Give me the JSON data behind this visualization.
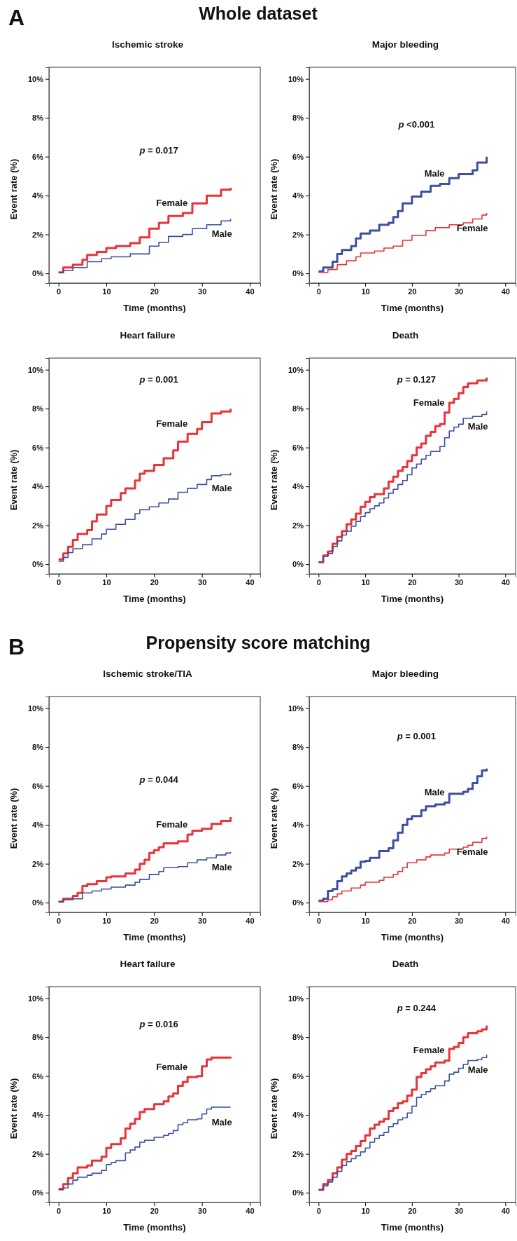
{
  "chart_data": [
    {
      "type": "step",
      "title": "Ischemic stroke",
      "xlabel": "Time (months)",
      "ylabel": "Event rate (%)",
      "annotations": [
        "A",
        "Whole dataset",
        "p = 0.017"
      ],
      "legend": false,
      "xlim": [
        -2,
        42.2
      ],
      "ylim": [
        -0.5,
        10.6
      ],
      "xticks": [
        0,
        10,
        20,
        30,
        40
      ],
      "yticks": [
        {
          "value": 0,
          "label": "0%"
        },
        {
          "value": 2,
          "label": "2%"
        },
        {
          "value": 4,
          "label": "4%"
        },
        {
          "value": 6,
          "label": "6%"
        },
        {
          "value": 8,
          "label": "8%"
        },
        {
          "value": 10,
          "label": "10%"
        }
      ],
      "series": [
        {
          "name": "Female",
          "color": "#e8333a",
          "x": [
            0,
            1,
            3,
            5,
            6,
            8,
            10,
            12,
            15,
            17,
            19,
            21,
            23,
            26,
            28,
            31,
            34,
            36
          ],
          "values": [
            0.05,
            0.3,
            0.45,
            0.7,
            0.95,
            1.1,
            1.3,
            1.4,
            1.55,
            1.85,
            2.3,
            2.6,
            2.95,
            3.1,
            3.6,
            4.0,
            4.3,
            4.4
          ]
        },
        {
          "name": "Male",
          "color": "#3c4fa0",
          "x": [
            0,
            1,
            3,
            6,
            9,
            11,
            15,
            19,
            21,
            23,
            26,
            28,
            31,
            34,
            36
          ],
          "values": [
            0.05,
            0.15,
            0.3,
            0.6,
            0.75,
            0.85,
            1.0,
            1.4,
            1.6,
            1.9,
            2.0,
            2.3,
            2.5,
            2.7,
            2.8
          ]
        }
      ]
    },
    {
      "type": "step",
      "title": "Major bleeding",
      "xlabel": "Time (months)",
      "ylabel": "Event rate (%)",
      "annotations": [
        "p <0.001"
      ],
      "legend": false,
      "xlim": [
        -2,
        42.2
      ],
      "ylim": [
        -0.5,
        10.6
      ],
      "xticks": [
        0,
        10,
        20,
        30,
        40
      ],
      "yticks": [
        {
          "value": 0,
          "label": "0%"
        },
        {
          "value": 2,
          "label": "2%"
        },
        {
          "value": 4,
          "label": "4%"
        },
        {
          "value": 6,
          "label": "6%"
        },
        {
          "value": 8,
          "label": "8%"
        },
        {
          "value": 10,
          "label": "10%"
        }
      ],
      "series": [
        {
          "name": "Male",
          "color": "#3c4fa0",
          "x": [
            0,
            1,
            3,
            4,
            5,
            7,
            8,
            9,
            11,
            13,
            15,
            16,
            17,
            18,
            20,
            22,
            24,
            26,
            28,
            30,
            33,
            34,
            36
          ],
          "values": [
            0.1,
            0.3,
            0.6,
            1.0,
            1.2,
            1.4,
            1.8,
            2.05,
            2.2,
            2.5,
            2.6,
            2.9,
            3.2,
            3.6,
            3.95,
            4.2,
            4.5,
            4.6,
            4.9,
            5.1,
            5.3,
            5.7,
            6.0
          ]
        },
        {
          "name": "Female",
          "color": "#e8333a",
          "x": [
            0,
            2,
            4,
            6,
            8,
            9,
            12,
            14,
            16,
            18,
            20,
            23,
            25,
            28,
            31,
            33,
            35,
            36
          ],
          "values": [
            0.05,
            0.2,
            0.45,
            0.65,
            0.85,
            1.05,
            1.15,
            1.3,
            1.4,
            1.7,
            1.95,
            2.2,
            2.35,
            2.5,
            2.6,
            2.8,
            3.0,
            3.1
          ]
        }
      ]
    },
    {
      "type": "step",
      "title": "Heart failure",
      "xlabel": "Time (months)",
      "ylabel": "Event rate (%)",
      "annotations": [
        "p = 0.001"
      ],
      "legend": false,
      "xlim": [
        -2,
        42.2
      ],
      "ylim": [
        -0.5,
        10.6
      ],
      "xticks": [
        0,
        10,
        20,
        30,
        40
      ],
      "yticks": [
        {
          "value": 0,
          "label": "0%"
        },
        {
          "value": 2,
          "label": "2%"
        },
        {
          "value": 4,
          "label": "4%"
        },
        {
          "value": 6,
          "label": "6%"
        },
        {
          "value": 8,
          "label": "8%"
        },
        {
          "value": 10,
          "label": "10%"
        }
      ],
      "series": [
        {
          "name": "Female",
          "color": "#e8333a",
          "x": [
            0,
            1,
            2,
            3,
            4,
            6,
            7,
            8,
            10,
            11,
            13,
            14,
            16,
            17,
            18,
            20,
            22,
            24,
            25,
            27,
            29,
            30,
            32,
            34,
            36
          ],
          "values": [
            0.25,
            0.55,
            0.9,
            1.25,
            1.55,
            1.75,
            2.2,
            2.55,
            3.0,
            3.3,
            3.65,
            3.9,
            4.3,
            4.65,
            4.8,
            5.1,
            5.45,
            5.85,
            6.3,
            6.7,
            6.95,
            7.3,
            7.75,
            7.85,
            8.0
          ]
        },
        {
          "name": "Male",
          "color": "#3c4fa0",
          "x": [
            0,
            1,
            2,
            3,
            5,
            7,
            9,
            10,
            12,
            14,
            16,
            17,
            19,
            21,
            23,
            25,
            27,
            29,
            31,
            32,
            34,
            36
          ],
          "values": [
            0.15,
            0.35,
            0.6,
            0.8,
            1.0,
            1.3,
            1.55,
            1.8,
            2.05,
            2.3,
            2.6,
            2.8,
            2.95,
            3.15,
            3.35,
            3.7,
            3.9,
            4.1,
            4.35,
            4.55,
            4.6,
            4.7
          ]
        }
      ]
    },
    {
      "type": "step",
      "title": "Death",
      "xlabel": "Time (months)",
      "ylabel": "Event rate (%)",
      "annotations": [
        "p = 0.127"
      ],
      "legend": false,
      "xlim": [
        -2,
        42.2
      ],
      "ylim": [
        -0.5,
        10.6
      ],
      "xticks": [
        0,
        10,
        20,
        30,
        40
      ],
      "yticks": [
        {
          "value": 0,
          "label": "0%"
        },
        {
          "value": 2,
          "label": "2%"
        },
        {
          "value": 4,
          "label": "4%"
        },
        {
          "value": 6,
          "label": "6%"
        },
        {
          "value": 8,
          "label": "8%"
        },
        {
          "value": 10,
          "label": "10%"
        }
      ],
      "series": [
        {
          "name": "Female",
          "color": "#e8333a",
          "x": [
            0,
            1,
            2,
            3,
            4,
            5,
            6,
            7,
            8,
            9,
            10,
            11,
            12,
            14,
            15,
            16,
            17,
            18,
            19,
            20,
            21,
            22,
            23,
            24,
            25,
            26,
            27,
            28,
            29,
            30,
            31,
            32,
            34,
            36
          ],
          "values": [
            0.1,
            0.45,
            0.65,
            1.05,
            1.4,
            1.7,
            2.05,
            2.3,
            2.6,
            2.95,
            3.2,
            3.45,
            3.6,
            3.9,
            4.25,
            4.5,
            4.8,
            5.0,
            5.3,
            5.6,
            6.0,
            6.2,
            6.6,
            6.8,
            7.1,
            7.2,
            7.8,
            8.3,
            8.5,
            8.8,
            9.1,
            9.3,
            9.45,
            9.6
          ]
        },
        {
          "name": "Male",
          "color": "#3c4fa0",
          "x": [
            0,
            1,
            2,
            3,
            4,
            5,
            6,
            7,
            8,
            9,
            10,
            11,
            12,
            13,
            14,
            15,
            16,
            17,
            18,
            19,
            20,
            21,
            22,
            23,
            24,
            26,
            27,
            28,
            29,
            30,
            31,
            33,
            35,
            36
          ],
          "values": [
            0.1,
            0.4,
            0.55,
            0.9,
            1.2,
            1.5,
            1.7,
            1.95,
            2.2,
            2.45,
            2.65,
            2.85,
            3.0,
            3.15,
            3.4,
            3.65,
            3.85,
            4.1,
            4.3,
            4.6,
            4.95,
            5.15,
            5.4,
            5.6,
            5.8,
            6.05,
            6.5,
            6.85,
            7.05,
            7.2,
            7.5,
            7.6,
            7.7,
            7.85
          ]
        }
      ]
    },
    {
      "type": "step",
      "title": "Ischemic stroke/TIA",
      "xlabel": "Time (months)",
      "ylabel": "Event rate (%)",
      "annotations": [
        "B",
        "Propensity score matching",
        "p = 0.044"
      ],
      "legend": false,
      "xlim": [
        -2,
        42.2
      ],
      "ylim": [
        -0.5,
        10.6
      ],
      "xticks": [
        0,
        10,
        20,
        30,
        40
      ],
      "yticks": [
        {
          "value": 0,
          "label": "0%"
        },
        {
          "value": 2,
          "label": "2%"
        },
        {
          "value": 4,
          "label": "4%"
        },
        {
          "value": 6,
          "label": "6%"
        },
        {
          "value": 8,
          "label": "8%"
        },
        {
          "value": 10,
          "label": "10%"
        }
      ],
      "series": [
        {
          "name": "Female",
          "color": "#e8333a",
          "x": [
            0,
            1,
            3,
            4,
            5,
            6,
            8,
            10,
            11,
            14,
            16,
            17,
            18,
            19,
            20,
            21,
            22,
            25,
            27,
            28,
            30,
            32,
            34,
            36
          ],
          "values": [
            0.05,
            0.2,
            0.35,
            0.5,
            0.85,
            0.95,
            1.1,
            1.3,
            1.35,
            1.5,
            1.7,
            2.0,
            2.2,
            2.55,
            2.7,
            2.85,
            3.05,
            3.15,
            3.5,
            3.7,
            3.8,
            4.05,
            4.2,
            4.4
          ]
        },
        {
          "name": "Male",
          "color": "#3c4fa0",
          "x": [
            0,
            1,
            3,
            5,
            7,
            9,
            11,
            14,
            16,
            17,
            19,
            21,
            22,
            25,
            27,
            29,
            31,
            33,
            35,
            36
          ],
          "values": [
            0.05,
            0.15,
            0.2,
            0.5,
            0.6,
            0.7,
            0.8,
            0.9,
            1.05,
            1.2,
            1.45,
            1.6,
            1.8,
            1.85,
            2.05,
            2.2,
            2.3,
            2.45,
            2.55,
            2.6
          ]
        }
      ]
    },
    {
      "type": "step",
      "title": "Major bleeding",
      "xlabel": "Time (months)",
      "ylabel": "Event rate (%)",
      "annotations": [
        "p = 0.001"
      ],
      "legend": false,
      "xlim": [
        -2,
        42.2
      ],
      "ylim": [
        -0.5,
        10.6
      ],
      "xticks": [
        0,
        10,
        20,
        30,
        40
      ],
      "yticks": [
        {
          "value": 0,
          "label": "0%"
        },
        {
          "value": 2,
          "label": "2%"
        },
        {
          "value": 4,
          "label": "4%"
        },
        {
          "value": 6,
          "label": "6%"
        },
        {
          "value": 8,
          "label": "8%"
        },
        {
          "value": 10,
          "label": "10%"
        }
      ],
      "series": [
        {
          "name": "Male",
          "color": "#3c4fa0",
          "x": [
            0,
            1,
            2,
            3,
            4,
            5,
            6,
            7,
            8,
            9,
            10,
            11,
            13,
            15,
            16,
            17,
            18,
            19,
            20,
            22,
            23,
            25,
            27,
            28,
            30,
            31,
            32,
            33,
            34,
            35,
            36
          ],
          "values": [
            0.1,
            0.2,
            0.6,
            0.7,
            1.1,
            1.35,
            1.5,
            1.65,
            1.8,
            2.1,
            2.15,
            2.3,
            2.65,
            2.8,
            3.2,
            3.6,
            4.0,
            4.3,
            4.45,
            4.75,
            4.95,
            5.05,
            5.15,
            5.6,
            5.6,
            5.7,
            5.85,
            6.15,
            6.5,
            6.8,
            6.9
          ]
        },
        {
          "name": "Female",
          "color": "#e8333a",
          "x": [
            0,
            2,
            3,
            4,
            5,
            7,
            9,
            10,
            13,
            14,
            16,
            17,
            18,
            19,
            21,
            23,
            24,
            27,
            28,
            31,
            32,
            33,
            35,
            36
          ],
          "values": [
            0.05,
            0.15,
            0.3,
            0.45,
            0.6,
            0.75,
            0.9,
            1.05,
            1.15,
            1.3,
            1.45,
            1.6,
            1.8,
            2.05,
            2.2,
            2.35,
            2.45,
            2.55,
            2.75,
            2.85,
            2.95,
            3.1,
            3.3,
            3.4
          ]
        }
      ]
    },
    {
      "type": "step",
      "title": "Heart failure",
      "xlabel": "Time (months)",
      "ylabel": "Event rate (%)",
      "annotations": [
        "p = 0.016"
      ],
      "legend": false,
      "xlim": [
        -2,
        42.2
      ],
      "ylim": [
        -0.5,
        10.6
      ],
      "xticks": [
        0,
        10,
        20,
        30,
        40
      ],
      "yticks": [
        {
          "value": 0,
          "label": "0%"
        },
        {
          "value": 2,
          "label": "2%"
        },
        {
          "value": 4,
          "label": "4%"
        },
        {
          "value": 6,
          "label": "6%"
        },
        {
          "value": 8,
          "label": "8%"
        },
        {
          "value": 10,
          "label": "10%"
        }
      ],
      "series": [
        {
          "name": "Female",
          "color": "#e8333a",
          "x": [
            0,
            1,
            2,
            3,
            4,
            6,
            7,
            9,
            10,
            11,
            13,
            14,
            15,
            16,
            17,
            18,
            20,
            22,
            23,
            24,
            25,
            26,
            27,
            29,
            30,
            31,
            32,
            36
          ],
          "values": [
            0.2,
            0.45,
            0.75,
            1.0,
            1.3,
            1.4,
            1.65,
            1.85,
            2.3,
            2.5,
            2.8,
            3.3,
            3.55,
            3.8,
            4.15,
            4.3,
            4.55,
            4.7,
            4.95,
            5.1,
            5.5,
            5.7,
            5.95,
            6.0,
            6.5,
            6.85,
            6.95,
            7.0
          ]
        },
        {
          "name": "Male",
          "color": "#3c4fa0",
          "x": [
            0,
            1,
            2,
            3,
            4,
            6,
            7,
            9,
            10,
            11,
            12,
            14,
            15,
            16,
            17,
            18,
            20,
            22,
            23,
            24,
            25,
            26,
            27,
            29,
            30,
            31,
            32,
            36
          ],
          "values": [
            0.15,
            0.25,
            0.45,
            0.65,
            0.8,
            0.9,
            1.0,
            1.15,
            1.45,
            1.55,
            1.65,
            2.05,
            2.2,
            2.35,
            2.6,
            2.7,
            2.85,
            2.95,
            3.05,
            3.2,
            3.5,
            3.6,
            3.75,
            3.8,
            4.05,
            4.3,
            4.4,
            4.4
          ]
        }
      ]
    },
    {
      "type": "step",
      "title": "Death",
      "xlabel": "Time (months)",
      "ylabel": "Event rate (%)",
      "annotations": [
        "p = 0.244"
      ],
      "legend": false,
      "xlim": [
        -2,
        42.2
      ],
      "ylim": [
        -0.5,
        10.6
      ],
      "xticks": [
        0,
        10,
        20,
        30,
        40
      ],
      "yticks": [
        {
          "value": 0,
          "label": "0%"
        },
        {
          "value": 2,
          "label": "2%"
        },
        {
          "value": 4,
          "label": "4%"
        },
        {
          "value": 6,
          "label": "6%"
        },
        {
          "value": 8,
          "label": "8%"
        },
        {
          "value": 10,
          "label": "10%"
        }
      ],
      "series": [
        {
          "name": "Female",
          "color": "#e8333a",
          "x": [
            0,
            1,
            2,
            3,
            4,
            5,
            6,
            7,
            8,
            9,
            10,
            11,
            12,
            13,
            14,
            15,
            16,
            17,
            18,
            19,
            20,
            21,
            22,
            23,
            24,
            25,
            27,
            28,
            29,
            30,
            31,
            32,
            34,
            35,
            36
          ],
          "values": [
            0.15,
            0.45,
            0.65,
            1.0,
            1.3,
            1.7,
            2.0,
            2.15,
            2.4,
            2.65,
            2.95,
            3.3,
            3.5,
            3.65,
            3.8,
            4.2,
            4.35,
            4.6,
            4.7,
            5.0,
            5.3,
            5.95,
            6.15,
            6.35,
            6.5,
            6.7,
            6.8,
            7.4,
            7.5,
            7.7,
            8.0,
            8.2,
            8.3,
            8.4,
            8.6
          ]
        },
        {
          "name": "Male",
          "color": "#3c4fa0",
          "x": [
            0,
            1,
            2,
            3,
            4,
            5,
            6,
            7,
            8,
            9,
            10,
            11,
            12,
            13,
            14,
            15,
            16,
            17,
            18,
            19,
            20,
            21,
            22,
            23,
            24,
            25,
            27,
            28,
            29,
            30,
            31,
            32,
            34,
            35,
            36
          ],
          "values": [
            0.15,
            0.35,
            0.55,
            0.8,
            1.1,
            1.4,
            1.6,
            1.75,
            1.9,
            2.1,
            2.3,
            2.6,
            2.8,
            2.95,
            3.1,
            3.4,
            3.55,
            3.75,
            3.85,
            4.1,
            4.45,
            4.9,
            5.05,
            5.2,
            5.35,
            5.5,
            5.75,
            6.1,
            6.2,
            6.4,
            6.6,
            6.8,
            6.85,
            6.95,
            7.1
          ]
        }
      ]
    }
  ]
}
